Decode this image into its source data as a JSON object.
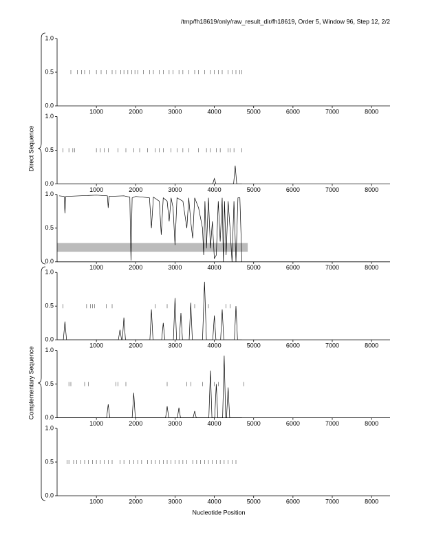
{
  "title": "/tmp/fh18619/only/raw_result_dir/fh18619, Order 5, Window 96, Step 12, 2/2",
  "xlabel": "Nucleotide Position",
  "ylabel_direct": "Direct Sequence",
  "ylabel_complementary": "Complementary Sequence",
  "stop_y": 0.5,
  "chart_data": [
    {
      "type": "line",
      "xlim": [
        0,
        8470
      ],
      "ylim": [
        0,
        1
      ],
      "xticks": [
        1000,
        2000,
        3000,
        4000,
        5000,
        6000,
        7000,
        8000
      ],
      "yticks": [
        {
          "value": 0,
          "label": "0.0"
        },
        {
          "value": 0.5,
          "label": "0.5"
        },
        {
          "value": 1,
          "label": "1.0"
        }
      ],
      "stops": [
        350,
        520,
        620,
        700,
        830,
        1000,
        1120,
        1250,
        1400,
        1500,
        1620,
        1700,
        1800,
        1900,
        1980,
        2050,
        2200,
        2350,
        2450,
        2600,
        2700,
        2850,
        2950,
        3100,
        3200,
        3350,
        3500,
        3600,
        3750,
        3900,
        4000,
        4100,
        4200,
        4350,
        4450,
        4550,
        4650,
        4700
      ]
    },
    {
      "type": "line",
      "xlim": [
        0,
        8470
      ],
      "ylim": [
        0,
        1
      ],
      "xticks": [
        1000,
        2000,
        3000,
        4000,
        5000,
        6000,
        7000,
        8000
      ],
      "yticks": [
        {
          "value": 0,
          "label": "0.0"
        },
        {
          "value": 0.5,
          "label": "0.5"
        },
        {
          "value": 1,
          "label": "1.0"
        }
      ],
      "stops": [
        150,
        300,
        400,
        450,
        1000,
        1100,
        1200,
        1300,
        1550,
        1750,
        1950,
        2100,
        2300,
        2500,
        2600,
        2700,
        2900,
        3050,
        3200,
        3350,
        3600,
        3800,
        3900,
        4050,
        4150,
        4350,
        4400,
        4500,
        4700
      ],
      "x": [
        0,
        3960,
        4000,
        4040,
        4490,
        4530,
        4570,
        4700
      ],
      "y": [
        0,
        0,
        0.08,
        0,
        0,
        0.27,
        0,
        0
      ]
    },
    {
      "type": "line",
      "xlim": [
        0,
        8470
      ],
      "ylim": [
        0,
        1
      ],
      "xticks": [
        1000,
        2000,
        3000,
        4000,
        5000,
        6000,
        7000,
        8000
      ],
      "yticks": [
        {
          "value": 0,
          "label": "0.0"
        },
        {
          "value": 0.5,
          "label": "0.5"
        },
        {
          "value": 1,
          "label": "1.0"
        }
      ],
      "band": {
        "x": [
          0,
          4850
        ],
        "y": [
          0.15,
          0.28
        ]
      },
      "x": [
        50,
        180,
        200,
        220,
        1000,
        1280,
        1300,
        1320,
        1700,
        1850,
        1880,
        1910,
        2000,
        2350,
        2400,
        2450,
        2600,
        2650,
        2700,
        2800,
        2850,
        2900,
        2950,
        3000,
        3050,
        3200,
        3300,
        3350,
        3400,
        3450,
        3500,
        3600,
        3700,
        3730,
        3760,
        3800,
        3850,
        3900,
        3950,
        4000,
        4050,
        4100,
        4150,
        4200,
        4230,
        4260,
        4300,
        4350,
        4400,
        4450,
        4500,
        4550,
        4600,
        4650,
        4700
      ],
      "y": [
        0.98,
        0.97,
        0.72,
        0.97,
        0.99,
        0.98,
        0.8,
        0.97,
        0.98,
        0.96,
        0.02,
        0.95,
        0.97,
        0.95,
        0.5,
        0.96,
        0.9,
        0.4,
        0.95,
        0.9,
        0.6,
        0.95,
        0.8,
        0.25,
        0.95,
        0.9,
        0.5,
        0.95,
        0.6,
        0.35,
        0.95,
        0.8,
        0.5,
        0.1,
        0.9,
        0.2,
        0.95,
        0.2,
        0.6,
        0.05,
        0.1,
        0.9,
        0.3,
        0.95,
        0.0,
        0.9,
        0.1,
        0.9,
        0.5,
        0.0,
        0.9,
        0.0,
        0.95,
        0.95,
        0.0
      ]
    },
    {
      "type": "line",
      "xlim": [
        0,
        8470
      ],
      "ylim": [
        0,
        1
      ],
      "xticks": [
        1000,
        2000,
        3000,
        4000,
        5000,
        6000,
        7000,
        8000
      ],
      "yticks": [
        {
          "value": 0,
          "label": "0.0"
        },
        {
          "value": 0.5,
          "label": "0.5"
        },
        {
          "value": 1,
          "label": "1.0"
        }
      ],
      "stops": [
        150,
        750,
        850,
        900,
        950,
        1250,
        1400,
        2500,
        2800,
        3400,
        3500,
        3850,
        4300,
        4400
      ],
      "x": [
        0,
        160,
        200,
        240,
        1560,
        1600,
        1640,
        1660,
        1700,
        1740,
        2360,
        2400,
        2440,
        2660,
        2700,
        2740,
        2960,
        3000,
        3040,
        3110,
        3150,
        3190,
        3360,
        3400,
        3440,
        3700,
        3750,
        3800,
        3960,
        4000,
        4040,
        4160,
        4200,
        4240,
        4510,
        4550,
        4590,
        4700
      ],
      "y": [
        0,
        0,
        0.27,
        0,
        0,
        0.15,
        0,
        0,
        0.33,
        0,
        0,
        0.45,
        0,
        0,
        0.25,
        0,
        0,
        0.62,
        0,
        0,
        0.4,
        0,
        0,
        0.55,
        0,
        0,
        0.86,
        0,
        0,
        0.36,
        0,
        0,
        0.45,
        0,
        0,
        0.5,
        0,
        0
      ]
    },
    {
      "type": "line",
      "xlim": [
        0,
        8470
      ],
      "ylim": [
        0,
        1
      ],
      "xticks": [
        1000,
        2000,
        3000,
        4000,
        5000,
        6000,
        7000,
        8000
      ],
      "yticks": [
        {
          "value": 0,
          "label": "0.0"
        },
        {
          "value": 0.5,
          "label": "0.5"
        },
        {
          "value": 1,
          "label": "1.0"
        }
      ],
      "stops": [
        300,
        350,
        700,
        800,
        1500,
        1550,
        1750,
        2800,
        3300,
        3400,
        3700,
        4000,
        4100,
        4750
      ],
      "x": [
        0,
        1260,
        1300,
        1340,
        1910,
        1950,
        1990,
        2760,
        2800,
        2840,
        3060,
        3100,
        3140,
        3460,
        3500,
        3540,
        3860,
        3900,
        3940,
        4010,
        4050,
        4090,
        4210,
        4250,
        4290,
        4310,
        4350,
        4390,
        4700
      ],
      "y": [
        0,
        0,
        0.2,
        0,
        0,
        0.37,
        0,
        0,
        0.17,
        0,
        0,
        0.15,
        0,
        0,
        0.1,
        0,
        0,
        0.7,
        0,
        0,
        0.5,
        0,
        0,
        0.92,
        0,
        0,
        0.45,
        0,
        0
      ]
    },
    {
      "type": "line",
      "xlim": [
        0,
        8470
      ],
      "ylim": [
        0,
        1
      ],
      "xticks": [
        1000,
        2000,
        3000,
        4000,
        5000,
        6000,
        7000,
        8000
      ],
      "yticks": [
        {
          "value": 0,
          "label": "0.0"
        },
        {
          "value": 0.5,
          "label": "0.5"
        },
        {
          "value": 1,
          "label": "1.0"
        }
      ],
      "stops": [
        250,
        300,
        420,
        500,
        600,
        700,
        800,
        900,
        1000,
        1100,
        1200,
        1300,
        1400,
        1600,
        1700,
        1850,
        1950,
        2050,
        2150,
        2300,
        2400,
        2500,
        2600,
        2700,
        2800,
        2900,
        3000,
        3100,
        3200,
        3300,
        3450,
        3550,
        3650,
        3750,
        3850,
        3950,
        4050,
        4150,
        4250,
        4350,
        4450,
        4550
      ]
    }
  ]
}
